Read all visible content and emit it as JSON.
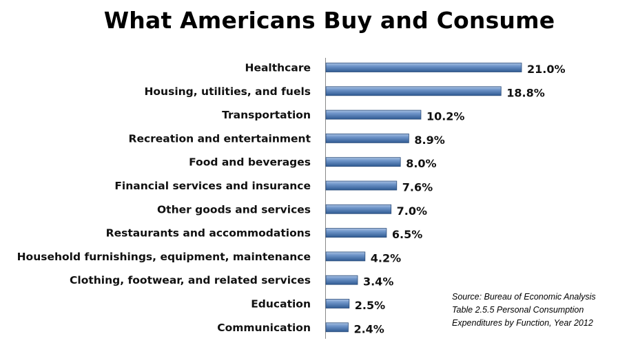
{
  "chart_data": {
    "type": "bar",
    "orientation": "horizontal",
    "title": "What Americans Buy and Consume",
    "categories": [
      "Healthcare",
      "Housing, utilities, and fuels",
      "Transportation",
      "Recreation and entertainment",
      "Food and beverages",
      "Financial services and insurance",
      "Other goods and services",
      "Restaurants and accommodations",
      "Household furnishings, equipment, maintenance",
      "Clothing, footwear, and related services",
      "Education",
      "Communication"
    ],
    "values": [
      21.0,
      18.8,
      10.2,
      8.9,
      8.0,
      7.6,
      7.0,
      6.5,
      4.2,
      3.4,
      2.5,
      2.4
    ],
    "value_labels": [
      "21.0%",
      "18.8%",
      "10.2%",
      "8.9%",
      "8.0%",
      "7.6%",
      "7.0%",
      "6.5%",
      "4.2%",
      "3.4%",
      "2.5%",
      "2.4%"
    ],
    "xlabel": "",
    "ylabel": "",
    "xlim": [
      0,
      21
    ],
    "grid": false,
    "bar_color": "#4f81bd",
    "annotation": [
      "Source: Bureau of Economic Analysis",
      "Table 2.5.5 Personal Consumption",
      "Expenditures by Function, Year 2012"
    ]
  }
}
